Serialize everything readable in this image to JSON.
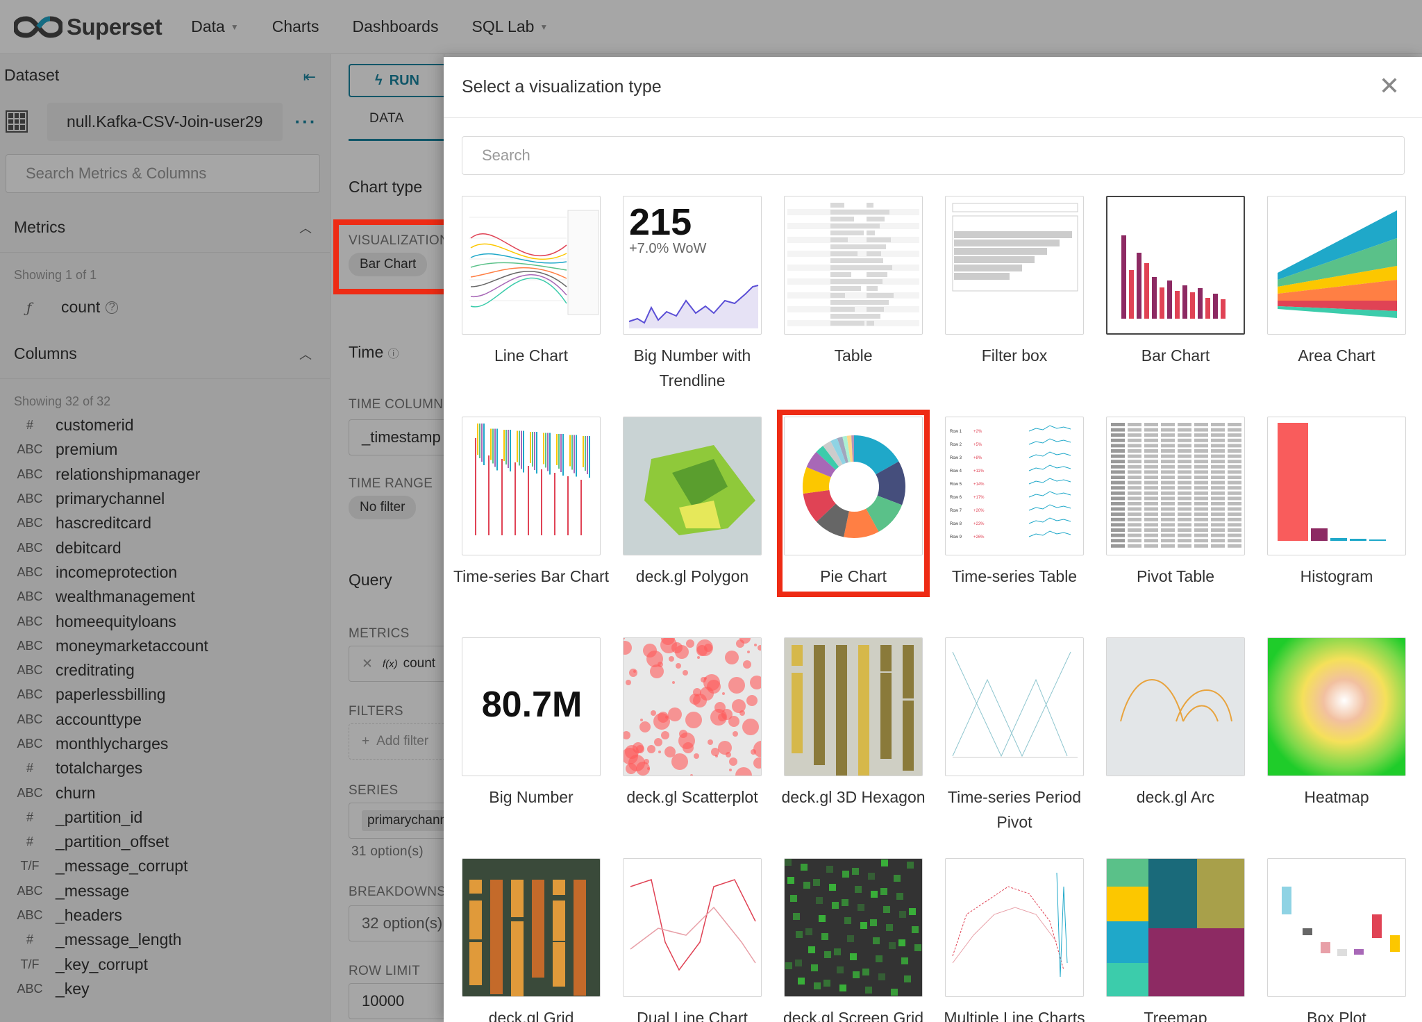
{
  "app": {
    "brand": "Superset"
  },
  "nav": [
    {
      "label": "Data",
      "has_caret": true
    },
    {
      "label": "Charts",
      "has_caret": false
    },
    {
      "label": "Dashboards",
      "has_caret": false
    },
    {
      "label": "SQL Lab",
      "has_caret": true
    }
  ],
  "dataset_panel": {
    "title": "Dataset",
    "dataset_name": "null.Kafka-CSV-Join-user29",
    "search_placeholder": "Search Metrics & Columns",
    "metrics_title": "Metrics",
    "metrics_showing": "Showing 1 of 1",
    "metrics": [
      {
        "type": "ƒ",
        "name": "count"
      }
    ],
    "columns_title": "Columns",
    "columns_showing": "Showing 32 of 32",
    "columns": [
      {
        "type": "#",
        "name": "customerid"
      },
      {
        "type": "ABC",
        "name": "premium"
      },
      {
        "type": "ABC",
        "name": "relationshipmanager"
      },
      {
        "type": "ABC",
        "name": "primarychannel"
      },
      {
        "type": "ABC",
        "name": "hascreditcard"
      },
      {
        "type": "ABC",
        "name": "debitcard"
      },
      {
        "type": "ABC",
        "name": "incomeprotection"
      },
      {
        "type": "ABC",
        "name": "wealthmanagement"
      },
      {
        "type": "ABC",
        "name": "homeequityloans"
      },
      {
        "type": "ABC",
        "name": "moneymarketaccount"
      },
      {
        "type": "ABC",
        "name": "creditrating"
      },
      {
        "type": "ABC",
        "name": "paperlessbilling"
      },
      {
        "type": "ABC",
        "name": "accounttype"
      },
      {
        "type": "ABC",
        "name": "monthlycharges"
      },
      {
        "type": "#",
        "name": "totalcharges"
      },
      {
        "type": "ABC",
        "name": "churn"
      },
      {
        "type": "#",
        "name": "_partition_id"
      },
      {
        "type": "#",
        "name": "_partition_offset"
      },
      {
        "type": "T/F",
        "name": "_message_corrupt"
      },
      {
        "type": "ABC",
        "name": "_message"
      },
      {
        "type": "ABC",
        "name": "_headers"
      },
      {
        "type": "#",
        "name": "_message_length"
      },
      {
        "type": "T/F",
        "name": "_key_corrupt"
      },
      {
        "type": "ABC",
        "name": "_key"
      }
    ]
  },
  "config_panel": {
    "run_label": "RUN",
    "tab_data": "DATA",
    "chart_type_label": "Chart type",
    "visualization_caption": "VISUALIZATION TYPE",
    "visualization_value": "Bar Chart",
    "time_label": "Time",
    "time_column_caption": "TIME COLUMN",
    "time_column_value": "_timestamp",
    "time_range_caption": "TIME RANGE",
    "time_range_value": "No filter",
    "query_label": "Query",
    "metrics_caption": "METRICS",
    "metrics_value": "count",
    "filters_caption": "FILTERS",
    "filters_add": "Add filter",
    "series_caption": "SERIES",
    "series_value": "primarychannel",
    "series_hint": "31 option(s)",
    "breakdowns_caption": "BREAKDOWNS",
    "breakdowns_value": "32 option(s)",
    "row_limit_caption": "ROW LIMIT",
    "row_limit_value": "10000"
  },
  "modal": {
    "title": "Select a visualization type",
    "search_placeholder": "Search",
    "big_number_thumb_value": "215",
    "big_number_thumb_delta": "+7.0% WoW",
    "big_number_tile_value": "80.7M",
    "selected": "Bar Chart",
    "highlighted": "Pie Chart",
    "types": [
      "Line Chart",
      "Big Number with Trendline",
      "Table",
      "Filter box",
      "Bar Chart",
      "Area Chart",
      "Time-series Bar Chart",
      "deck.gl Polygon",
      "Pie Chart",
      "Time-series Table",
      "Pivot Table",
      "Histogram",
      "Big Number",
      "deck.gl Scatterplot",
      "deck.gl 3D Hexagon",
      "Time-series Period Pivot",
      "deck.gl Arc",
      "Heatmap",
      "deck.gl Grid",
      "Dual Line Chart",
      "deck.gl Screen Grid",
      "Multiple Line Charts",
      "Treemap",
      "Box Plot"
    ]
  },
  "colors": {
    "accent": "#1a85a0",
    "highlight": "#ee2b14"
  }
}
